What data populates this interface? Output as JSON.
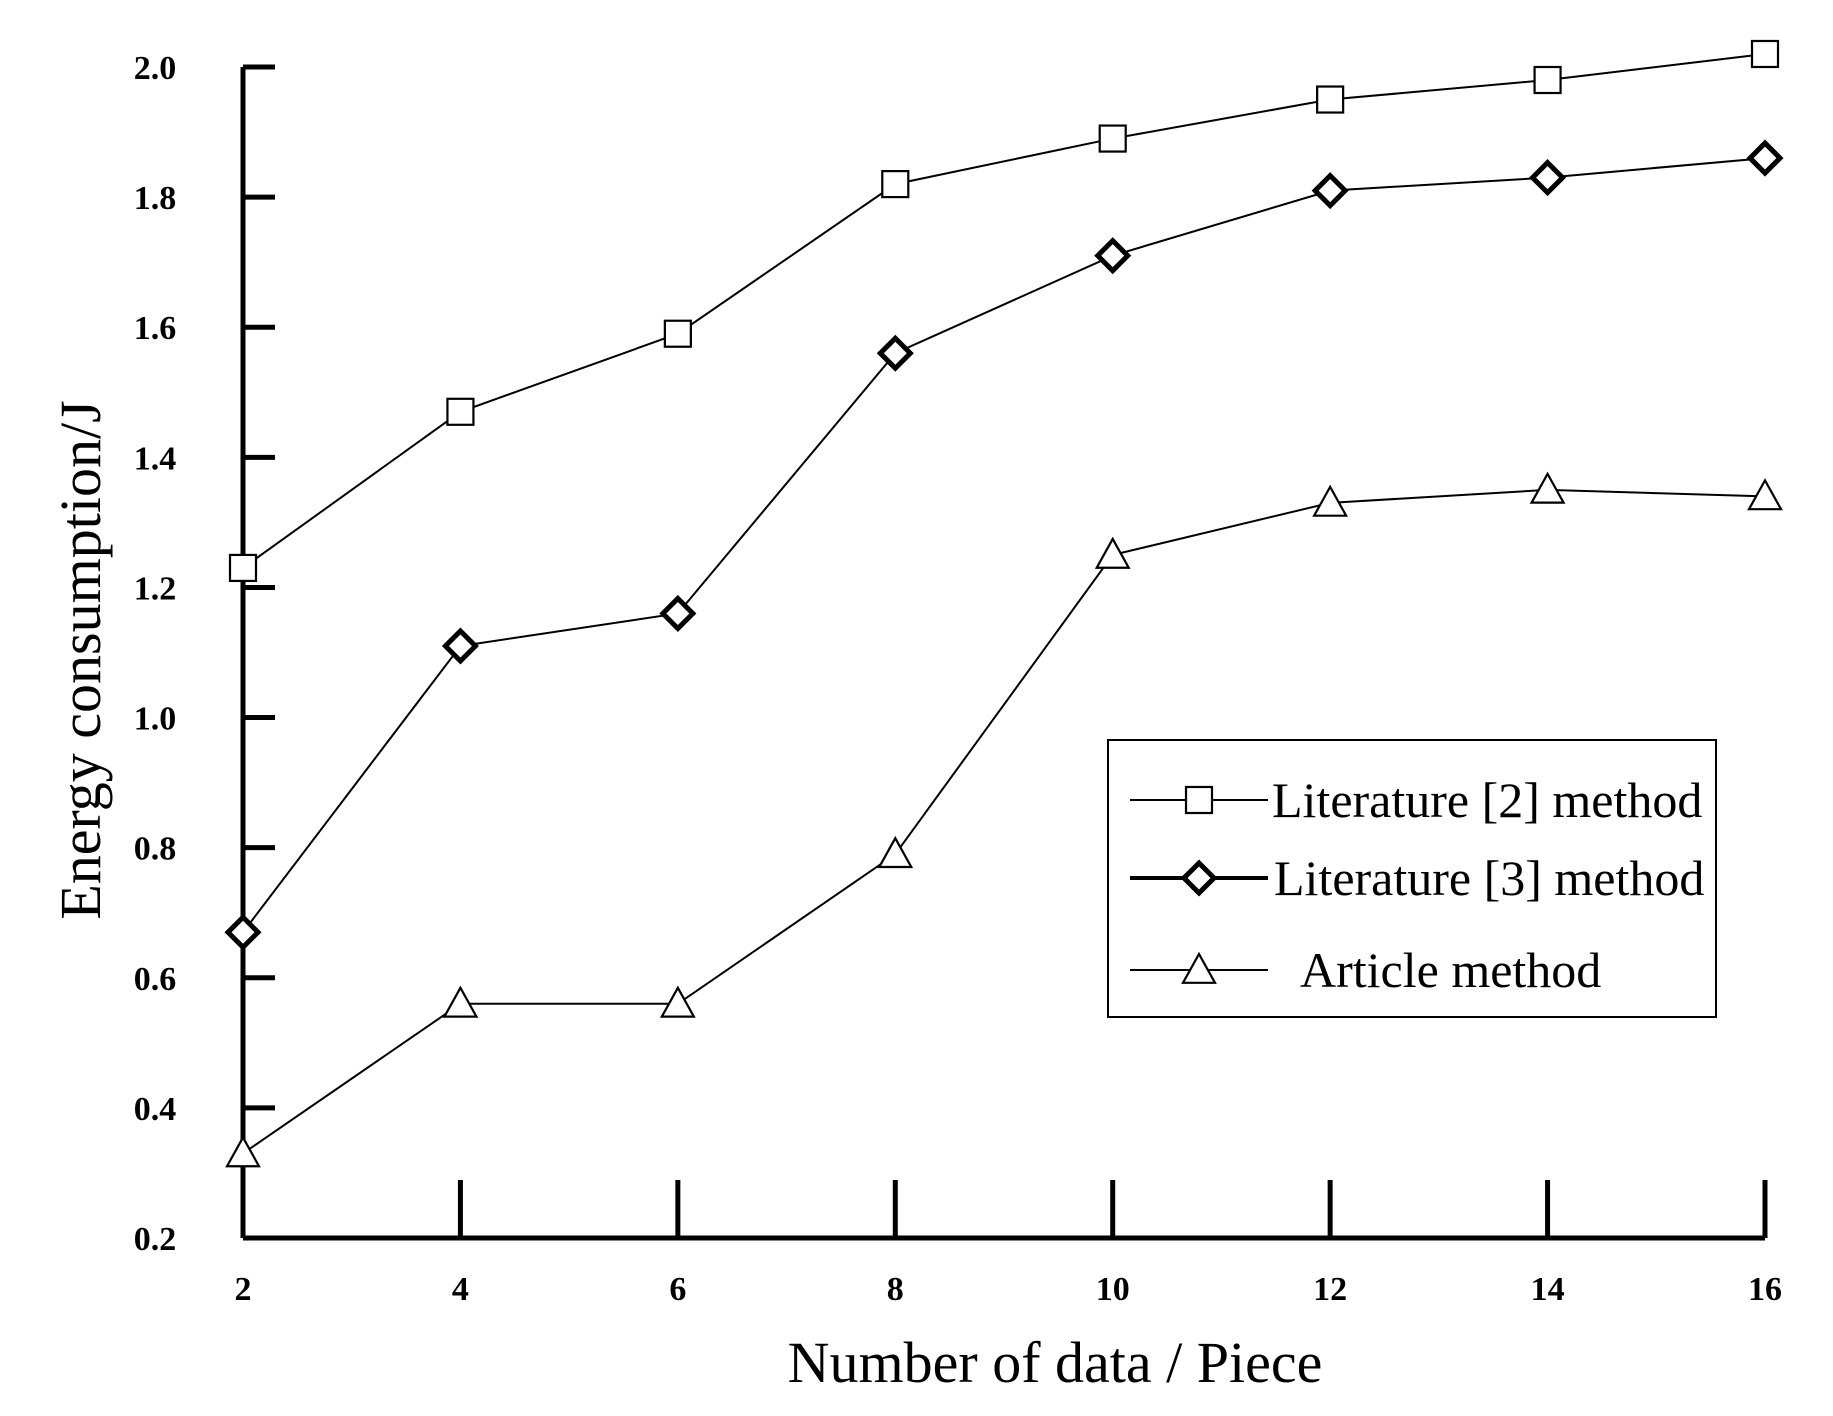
{
  "chart_data": {
    "type": "line",
    "xlabel": "Number of data / Piece",
    "ylabel": "Energy consumption/J",
    "xlim": [
      2,
      16
    ],
    "ylim": [
      0.2,
      2.0
    ],
    "x_ticks": [
      "2",
      "4",
      "6",
      "8",
      "10",
      "12",
      "14",
      "16"
    ],
    "y_ticks": [
      "0.2",
      "0.4",
      "0.6",
      "0.8",
      "1.0",
      "1.2",
      "1.4",
      "1.6",
      "1.8",
      "2.0"
    ],
    "x": [
      2,
      4,
      6,
      8,
      10,
      12,
      14,
      16
    ],
    "grid": false,
    "legend_position": "right",
    "series": [
      {
        "name": "Literature [2] method",
        "marker": "square",
        "values": [
          1.23,
          1.47,
          1.59,
          1.82,
          1.89,
          1.95,
          1.98,
          2.02
        ]
      },
      {
        "name": "Literature [3] method",
        "marker": "diamond",
        "values": [
          0.67,
          1.11,
          1.16,
          1.56,
          1.71,
          1.81,
          1.83,
          1.86
        ]
      },
      {
        "name": "Article method",
        "marker": "triangle",
        "values": [
          0.33,
          0.56,
          0.56,
          0.79,
          1.25,
          1.33,
          1.35,
          1.34
        ]
      }
    ]
  }
}
